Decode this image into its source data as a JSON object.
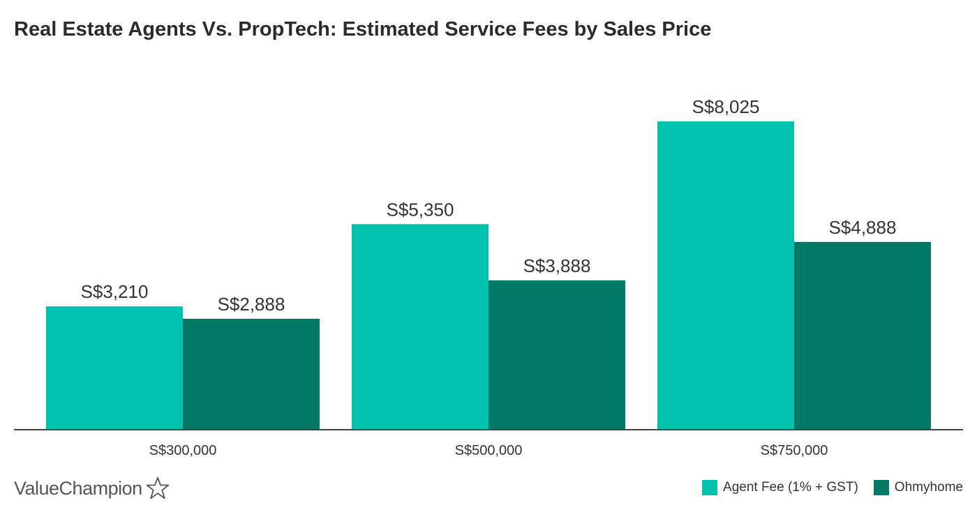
{
  "chart_data": {
    "type": "bar",
    "title": "Real Estate Agents Vs. PropTech: Estimated Service Fees by Sales Price",
    "categories": [
      "S$300,000",
      "S$500,000",
      "S$750,000"
    ],
    "series": [
      {
        "name": "Agent Fee (1% + GST)",
        "values": [
          3210,
          5350,
          8025
        ],
        "labels": [
          "S$3,210",
          "S$5,350",
          "S$8,025"
        ],
        "color": "#00c2ae"
      },
      {
        "name": "Ohmyhome",
        "values": [
          2888,
          3888,
          4888
        ],
        "labels": [
          "S$2,888",
          "S$3,888",
          "S$4,888"
        ],
        "color": "#007a66"
      }
    ],
    "ylim": [
      0,
      8000
    ],
    "grid": false,
    "legend_position": "bottom-right"
  },
  "brand": {
    "name": "ValueChampion",
    "icon": "star-outline-icon"
  }
}
